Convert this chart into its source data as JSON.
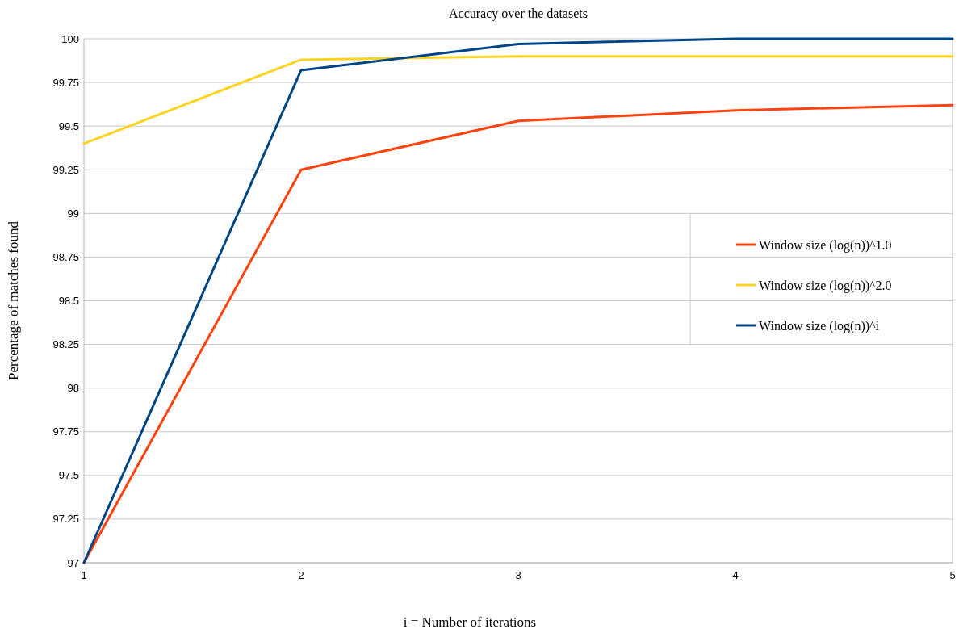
{
  "chart_data": {
    "type": "line",
    "title": "Accuracy over the datasets",
    "xlabel": "i = Number of iterations",
    "ylabel": "Percentage of matches found",
    "x": [
      1,
      2,
      3,
      4,
      5
    ],
    "series": [
      {
        "name": "Window size (log(n))^1.0",
        "color": "#ff420e",
        "values": [
          97,
          99.25,
          99.53,
          99.59,
          99.62
        ]
      },
      {
        "name": "Window size (log(n))^2.0",
        "color": "#ffd320",
        "values": [
          99.4,
          99.88,
          99.9,
          99.9,
          99.9
        ]
      },
      {
        "name": "Window size (log(n))^i",
        "color": "#004586",
        "values": [
          97,
          99.82,
          99.97,
          100,
          100
        ]
      }
    ],
    "xlim": [
      1,
      5
    ],
    "xticks": [
      1,
      2,
      3,
      4,
      5
    ],
    "ylim": [
      97,
      100
    ],
    "yticks": [
      97,
      97.25,
      97.5,
      97.75,
      98,
      98.25,
      98.5,
      98.75,
      99,
      99.25,
      99.5,
      99.75,
      100
    ],
    "grid": "y",
    "legend": "right",
    "marker": "none",
    "line_style": "solid"
  }
}
